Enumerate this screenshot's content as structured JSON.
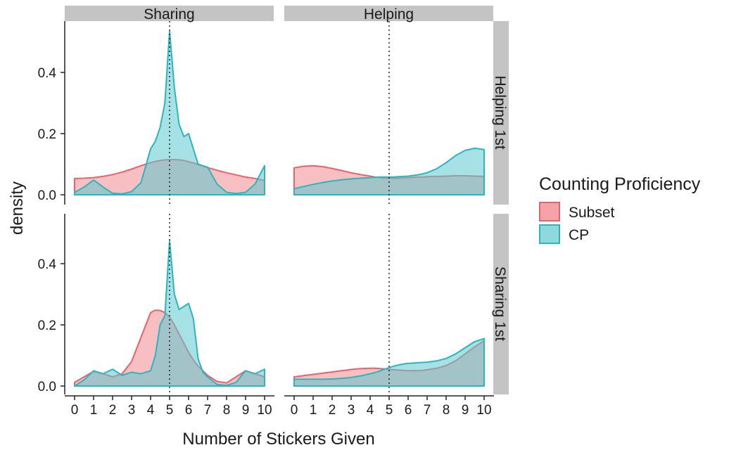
{
  "chart_data": {
    "type": "area",
    "subtype": "density facet grid",
    "xlabel": "Number of Stickers Given",
    "ylabel": "density",
    "x_ticks": [
      0,
      1,
      2,
      3,
      4,
      5,
      6,
      7,
      8,
      9,
      10
    ],
    "y_ticks": [
      0.0,
      0.2,
      0.4
    ],
    "y_tick_labels": [
      "0.0",
      "0.2",
      "0.4"
    ],
    "xlim": [
      0,
      10
    ],
    "ylim": [
      0,
      0.55
    ],
    "reference_line_x": 5,
    "column_facets": [
      "Sharing",
      "Helping"
    ],
    "row_facets": [
      "Helping 1st",
      "Sharing 1st"
    ],
    "legend": {
      "title": "Counting Proficiency",
      "placement": "right",
      "entries": [
        {
          "label": "Subset",
          "fill": "#f08a8e",
          "stroke": "#e8636a"
        },
        {
          "label": "CP",
          "fill": "#5cc9d0",
          "stroke": "#2bb6bf"
        }
      ]
    },
    "grid": false,
    "series_x": [
      0,
      0.5,
      1,
      1.5,
      2,
      2.5,
      3,
      3.5,
      4,
      4.25,
      4.5,
      4.75,
      5,
      5.25,
      5.5,
      5.75,
      6,
      6.25,
      6.5,
      6.75,
      7,
      7.5,
      8,
      8.5,
      9,
      9.5,
      10
    ],
    "panels": [
      {
        "row": "Helping 1st",
        "col": "Sharing",
        "subset": [
          0.053,
          0.054,
          0.056,
          0.06,
          0.066,
          0.074,
          0.084,
          0.095,
          0.105,
          0.109,
          0.112,
          0.114,
          0.115,
          0.115,
          0.114,
          0.112,
          0.108,
          0.104,
          0.099,
          0.094,
          0.089,
          0.08,
          0.072,
          0.065,
          0.058,
          0.053,
          0.047
        ],
        "cp": [
          0.008,
          0.025,
          0.048,
          0.025,
          0.005,
          0.003,
          0.01,
          0.04,
          0.15,
          0.175,
          0.22,
          0.3,
          0.535,
          0.35,
          0.23,
          0.19,
          0.2,
          0.15,
          0.1,
          0.095,
          0.09,
          0.035,
          0.008,
          0.004,
          0.008,
          0.035,
          0.095
        ]
      },
      {
        "row": "Helping 1st",
        "col": "Helping",
        "subset": [
          0.088,
          0.093,
          0.095,
          0.092,
          0.086,
          0.079,
          0.072,
          0.066,
          0.061,
          0.058,
          0.056,
          0.055,
          0.054,
          0.054,
          0.054,
          0.055,
          0.056,
          0.057,
          0.058,
          0.058,
          0.059,
          0.06,
          0.061,
          0.062,
          0.062,
          0.061,
          0.06
        ],
        "cp": [
          0.02,
          0.027,
          0.034,
          0.04,
          0.045,
          0.049,
          0.052,
          0.054,
          0.056,
          0.057,
          0.058,
          0.058,
          0.058,
          0.058,
          0.059,
          0.06,
          0.061,
          0.063,
          0.065,
          0.068,
          0.072,
          0.085,
          0.105,
          0.128,
          0.145,
          0.152,
          0.148
        ]
      },
      {
        "row": "Sharing 1st",
        "col": "Sharing",
        "subset": [
          0.012,
          0.03,
          0.048,
          0.04,
          0.03,
          0.04,
          0.08,
          0.16,
          0.24,
          0.248,
          0.247,
          0.24,
          0.225,
          0.2,
          0.17,
          0.14,
          0.11,
          0.085,
          0.065,
          0.05,
          0.035,
          0.015,
          0.01,
          0.03,
          0.05,
          0.04,
          0.03
        ],
        "cp": [
          0.0,
          0.02,
          0.05,
          0.04,
          0.055,
          0.035,
          0.045,
          0.04,
          0.05,
          0.1,
          0.2,
          0.23,
          0.475,
          0.3,
          0.25,
          0.26,
          0.27,
          0.22,
          0.09,
          0.045,
          0.03,
          0.005,
          0.002,
          0.012,
          0.05,
          0.04,
          0.055
        ]
      },
      {
        "row": "Sharing 1st",
        "col": "Helping",
        "subset": [
          0.03,
          0.034,
          0.038,
          0.042,
          0.046,
          0.05,
          0.054,
          0.057,
          0.058,
          0.058,
          0.057,
          0.056,
          0.054,
          0.053,
          0.052,
          0.051,
          0.05,
          0.05,
          0.05,
          0.051,
          0.053,
          0.058,
          0.067,
          0.082,
          0.105,
          0.128,
          0.148
        ],
        "cp": [
          0.022,
          0.022,
          0.022,
          0.022,
          0.023,
          0.025,
          0.028,
          0.033,
          0.04,
          0.044,
          0.049,
          0.055,
          0.06,
          0.065,
          0.069,
          0.072,
          0.074,
          0.075,
          0.076,
          0.077,
          0.078,
          0.082,
          0.09,
          0.105,
          0.125,
          0.145,
          0.155
        ]
      }
    ]
  }
}
